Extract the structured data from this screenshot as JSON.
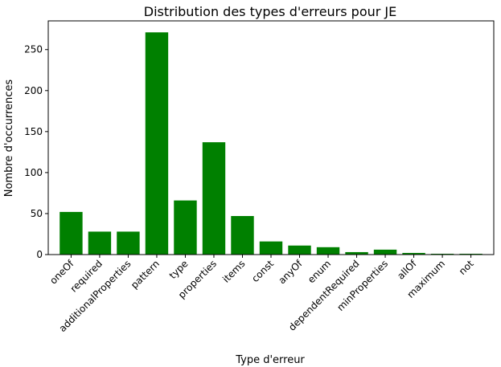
{
  "chart_data": {
    "type": "bar",
    "title": "Distribution des types d'erreurs pour JE",
    "xlabel": "Type d'erreur",
    "ylabel": "Nombre d'occurrences",
    "categories": [
      "oneOf",
      "required",
      "additionalProperties",
      "pattern",
      "type",
      "properties",
      "items",
      "const",
      "anyOf",
      "enum",
      "dependentRequired",
      "minProperties",
      "allOf",
      "maximum",
      "not"
    ],
    "values": [
      52,
      28,
      28,
      271,
      66,
      137,
      47,
      16,
      11,
      9,
      3,
      6,
      2,
      1,
      1
    ],
    "ylim": [
      0,
      285
    ],
    "yticks": [
      0,
      50,
      100,
      150,
      200,
      250
    ],
    "bar_color": "#008000",
    "grid": false,
    "legend": "none"
  }
}
